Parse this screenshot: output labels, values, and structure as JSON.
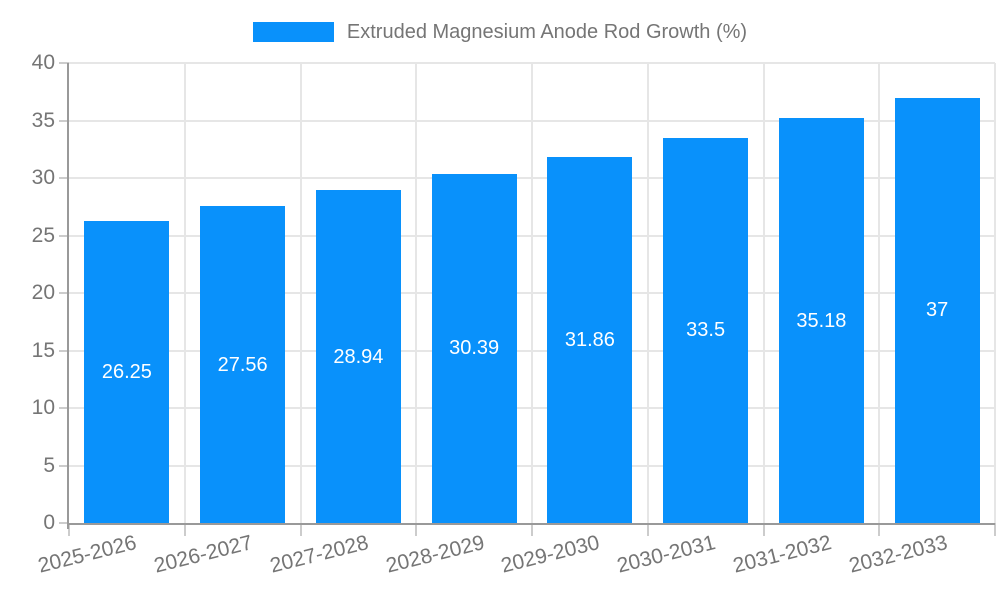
{
  "legend": {
    "label": "Extruded Magnesium Anode Rod Growth (%)",
    "swatch_color": "#0991fb"
  },
  "chart_data": {
    "type": "bar",
    "title": "Extruded Magnesium Anode Rod Growth (%)",
    "categories": [
      "2025-2026",
      "2026-2027",
      "2027-2028",
      "2028-2029",
      "2029-2030",
      "2030-2031",
      "2031-2032",
      "2032-2033"
    ],
    "values": [
      26.25,
      27.56,
      28.94,
      30.39,
      31.86,
      33.5,
      35.18,
      37
    ],
    "value_labels": [
      "26.25",
      "27.56",
      "28.94",
      "30.39",
      "31.86",
      "33.5",
      "35.18",
      "37"
    ],
    "xlabel": "",
    "ylabel": "",
    "ylim": [
      0,
      40
    ],
    "yticks": [
      0,
      5,
      10,
      15,
      20,
      25,
      30,
      35,
      40
    ],
    "grid": true,
    "legend_position": "top",
    "x_labels_rotated": true,
    "colors": {
      "bar": "#0991fb",
      "value_label": "#ffffff",
      "axis_text": "#757575",
      "grid_line": "#e6e6e6",
      "axis_line": "#999999",
      "tick_mark": "#cccccc"
    }
  }
}
